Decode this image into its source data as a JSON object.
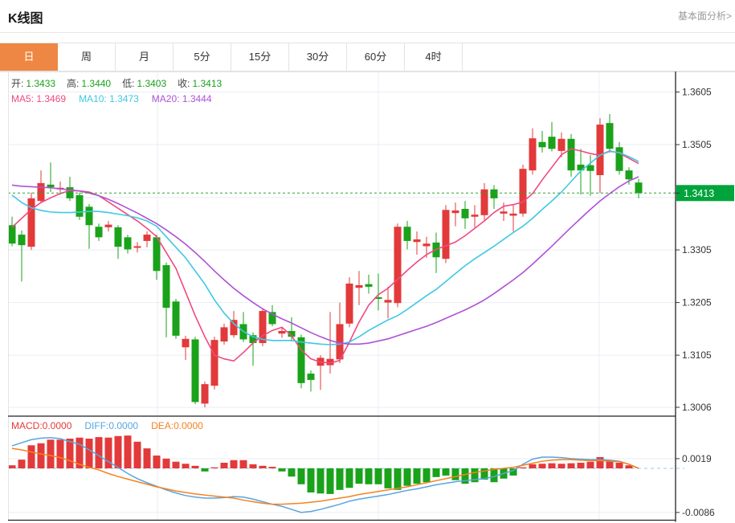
{
  "header": {
    "title": "K线图",
    "analysis_link": "基本面分析>"
  },
  "tabs": {
    "items": [
      "日",
      "周",
      "月",
      "5分",
      "15分",
      "30分",
      "60分",
      "4时"
    ],
    "active": "日"
  },
  "legend": {
    "ohlc": {
      "open_label": "开:",
      "open_value": "1.3433",
      "high_label": "高:",
      "high_value": "1.3440",
      "low_label": "低:",
      "low_value": "1.3403",
      "close_label": "收:",
      "close_value": "1.3413"
    },
    "ma": {
      "ma5_label": "MA5:",
      "ma5_value": "1.3469",
      "ma10_label": "MA10:",
      "ma10_value": "1.3473",
      "ma20_label": "MA20:",
      "ma20_value": "1.3444"
    },
    "macd": {
      "macd_label": "MACD:",
      "macd_value": "0.0000",
      "diff_label": "DIFF:",
      "diff_value": "0.0000",
      "dea_label": "DEA:",
      "dea_value": "0.0000"
    }
  },
  "colors": {
    "up": "#e23a3a",
    "down": "#1aa21a",
    "ma5": "#f0497f",
    "ma10": "#3fc8e4",
    "ma20": "#ae52d6",
    "diff": "#58a5e0",
    "dea": "#f5821f",
    "accent_tab": "#ee8743",
    "price_line": "#2ca52c",
    "badge_bg": "#00a43c",
    "grid": "#e9eef4",
    "axis_text": "#333333",
    "macd_zero": "#b5ddf2",
    "border_dark": "#222222",
    "border_light": "#e3e3e3"
  },
  "chart_data": {
    "type": "candlestick",
    "title": "K线图",
    "legend_position": "top-left",
    "grid": true,
    "price_axis": {
      "ticks": [
        {
          "value": 1.3605,
          "label": "1.3605"
        },
        {
          "value": 1.3505,
          "label": "1.3505"
        },
        {
          "value": 1.3405,
          "label": ""
        },
        {
          "value": 1.3305,
          "label": "1.3305"
        },
        {
          "value": 1.3205,
          "label": "1.3205"
        },
        {
          "value": 1.3105,
          "label": "1.3105"
        },
        {
          "value": 1.3006,
          "label": "1.3006"
        }
      ],
      "range": [
        1.2989,
        1.3642
      ],
      "current": {
        "value": 1.3413,
        "label": "1.3413"
      }
    },
    "macd_axis": {
      "ticks": [
        {
          "value": 0.0019,
          "label": "0.0019"
        },
        {
          "value": -0.0086,
          "label": "-0.0086"
        }
      ],
      "range": [
        -0.0102,
        0.0102
      ],
      "zero_line_dashed": true
    },
    "candles": [
      [
        1.3352,
        1.3368,
        1.3312,
        1.3317
      ],
      [
        1.3334,
        1.3342,
        1.3245,
        1.3314
      ],
      [
        1.3311,
        1.3414,
        1.3305,
        1.3403
      ],
      [
        1.3398,
        1.3456,
        1.3395,
        1.3432
      ],
      [
        1.3429,
        1.3471,
        1.3415,
        1.3424
      ],
      [
        1.342,
        1.3435,
        1.341,
        1.3423
      ],
      [
        1.3424,
        1.3444,
        1.3398,
        1.3403
      ],
      [
        1.3409,
        1.3414,
        1.3362,
        1.3368
      ],
      [
        1.3387,
        1.3392,
        1.3307,
        1.3352
      ],
      [
        1.3349,
        1.3355,
        1.3322,
        1.3329
      ],
      [
        1.3348,
        1.336,
        1.334,
        1.3353
      ],
      [
        1.3348,
        1.3352,
        1.3288,
        1.3311
      ],
      [
        1.3329,
        1.3334,
        1.3298,
        1.3306
      ],
      [
        1.3309,
        1.332,
        1.33,
        1.3312
      ],
      [
        1.3322,
        1.334,
        1.331,
        1.3334
      ],
      [
        1.3329,
        1.3334,
        1.3248,
        1.3265
      ],
      [
        1.3276,
        1.3281,
        1.3139,
        1.3195
      ],
      [
        1.3207,
        1.3212,
        1.3136,
        1.3142
      ],
      [
        1.312,
        1.3142,
        1.3096,
        1.3136
      ],
      [
        1.3135,
        1.314,
        1.3012,
        1.3016
      ],
      [
        1.3013,
        1.3055,
        1.3006,
        1.305
      ],
      [
        1.3047,
        1.314,
        1.304,
        1.3134
      ],
      [
        1.3131,
        1.3165,
        1.3125,
        1.3158
      ],
      [
        1.3143,
        1.3189,
        1.3138,
        1.3172
      ],
      [
        1.3164,
        1.3187,
        1.313,
        1.3135
      ],
      [
        1.3143,
        1.3148,
        1.3085,
        1.3128
      ],
      [
        1.3128,
        1.3194,
        1.3122,
        1.3189
      ],
      [
        1.3187,
        1.32,
        1.316,
        1.3164
      ],
      [
        1.3146,
        1.3158,
        1.3138,
        1.3151
      ],
      [
        1.3151,
        1.3177,
        1.3131,
        1.314
      ],
      [
        1.3139,
        1.3144,
        1.3042,
        1.3052
      ],
      [
        1.307,
        1.3076,
        1.3036,
        1.3058
      ],
      [
        1.3085,
        1.3105,
        1.3039,
        1.31
      ],
      [
        1.3086,
        1.3187,
        1.307,
        1.3098
      ],
      [
        1.3097,
        1.3205,
        1.309,
        1.3164
      ],
      [
        1.3165,
        1.3253,
        1.3158,
        1.3241
      ],
      [
        1.3233,
        1.3265,
        1.32,
        1.3238
      ],
      [
        1.324,
        1.3258,
        1.3222,
        1.3235
      ],
      [
        1.3215,
        1.326,
        1.319,
        1.3212
      ],
      [
        1.3205,
        1.3235,
        1.3175,
        1.321
      ],
      [
        1.3204,
        1.3355,
        1.3196,
        1.3349
      ],
      [
        1.3349,
        1.336,
        1.3306,
        1.3322
      ],
      [
        1.332,
        1.334,
        1.3296,
        1.3325
      ],
      [
        1.3312,
        1.333,
        1.329,
        1.3317
      ],
      [
        1.3319,
        1.3338,
        1.3261,
        1.3291
      ],
      [
        1.3288,
        1.339,
        1.328,
        1.3381
      ],
      [
        1.3375,
        1.3395,
        1.335,
        1.338
      ],
      [
        1.3383,
        1.3398,
        1.3345,
        1.3365
      ],
      [
        1.3368,
        1.339,
        1.3348,
        1.3372
      ],
      [
        1.3371,
        1.3432,
        1.3362,
        1.342
      ],
      [
        1.342,
        1.3428,
        1.3383,
        1.3403
      ],
      [
        1.3374,
        1.3395,
        1.336,
        1.3378
      ],
      [
        1.337,
        1.339,
        1.334,
        1.3374
      ],
      [
        1.3374,
        1.3467,
        1.3368,
        1.3459
      ],
      [
        1.3456,
        1.3536,
        1.3448,
        1.3517
      ],
      [
        1.351,
        1.3531,
        1.349,
        1.35
      ],
      [
        1.352,
        1.3548,
        1.3492,
        1.3497
      ],
      [
        1.3493,
        1.3528,
        1.3481,
        1.3516
      ],
      [
        1.3516,
        1.3525,
        1.3444,
        1.3456
      ],
      [
        1.3467,
        1.3497,
        1.341,
        1.3456
      ],
      [
        1.3466,
        1.3485,
        1.3408,
        1.3455
      ],
      [
        1.3447,
        1.3555,
        1.3413,
        1.3543
      ],
      [
        1.3546,
        1.3563,
        1.349,
        1.3497
      ],
      [
        1.35,
        1.351,
        1.3448,
        1.3455
      ],
      [
        1.3456,
        1.3462,
        1.3429,
        1.3439
      ],
      [
        1.3433,
        1.344,
        1.3403,
        1.3413
      ]
    ],
    "ma5": [
      1.3348,
      1.3365,
      1.3382,
      1.3395,
      1.3404,
      1.3412,
      1.3418,
      1.3417,
      1.3415,
      1.3408,
      1.3396,
      1.3384,
      1.3372,
      1.336,
      1.3346,
      1.333,
      1.33,
      1.327,
      1.3225,
      1.318,
      1.314,
      1.3105,
      1.3098,
      1.3094,
      1.311,
      1.3128,
      1.3142,
      1.3152,
      1.3158,
      1.3142,
      1.3115,
      1.3098,
      1.3092,
      1.309,
      1.3095,
      1.313,
      1.3168,
      1.32,
      1.322,
      1.3232,
      1.3249,
      1.3266,
      1.3282,
      1.3296,
      1.3306,
      1.3313,
      1.332,
      1.3332,
      1.3346,
      1.336,
      1.3376,
      1.3388,
      1.3391,
      1.3396,
      1.3412,
      1.3438,
      1.3462,
      1.3486,
      1.3497,
      1.3493,
      1.3488,
      1.3485,
      1.3493,
      1.3489,
      1.3479,
      1.3469
    ],
    "ma10": [
      1.3409,
      1.3395,
      1.3385,
      1.338,
      1.3377,
      1.3376,
      1.3376,
      1.3377,
      1.3378,
      1.3378,
      1.3376,
      1.3373,
      1.337,
      1.3366,
      1.336,
      1.335,
      1.333,
      1.331,
      1.329,
      1.3265,
      1.324,
      1.321,
      1.3185,
      1.3165,
      1.315,
      1.314,
      1.3135,
      1.3133,
      1.3133,
      1.3133,
      1.313,
      1.3128,
      1.3126,
      1.3125,
      1.3126,
      1.313,
      1.314,
      1.3152,
      1.3162,
      1.3172,
      1.318,
      1.3192,
      1.3205,
      1.3218,
      1.323,
      1.3245,
      1.326,
      1.3275,
      1.3288,
      1.33,
      1.3312,
      1.3325,
      1.3338,
      1.335,
      1.3365,
      1.3382,
      1.3398,
      1.3415,
      1.3435,
      1.3455,
      1.347,
      1.3485,
      1.3492,
      1.349,
      1.3482,
      1.3473
    ],
    "ma20": [
      1.3428,
      1.3426,
      1.3425,
      1.3424,
      1.3423,
      1.3421,
      1.3419,
      1.3417,
      1.3413,
      1.3408,
      1.3401,
      1.3393,
      1.3384,
      1.3375,
      1.3365,
      1.3355,
      1.3343,
      1.333,
      1.3316,
      1.33,
      1.3283,
      1.3265,
      1.3248,
      1.3232,
      1.3218,
      1.3205,
      1.3193,
      1.3183,
      1.3174,
      1.3166,
      1.3157,
      1.3148,
      1.314,
      1.3133,
      1.3128,
      1.3126,
      1.3126,
      1.3128,
      1.3132,
      1.3136,
      1.3142,
      1.3148,
      1.3154,
      1.316,
      1.3167,
      1.3175,
      1.3183,
      1.3191,
      1.32,
      1.321,
      1.3222,
      1.3235,
      1.3248,
      1.3262,
      1.3278,
      1.3295,
      1.3312,
      1.333,
      1.3348,
      1.3365,
      1.3382,
      1.3398,
      1.3412,
      1.3425,
      1.3436,
      1.3444
    ],
    "macd_hist": [
      0.0006,
      0.0017,
      0.0045,
      0.0049,
      0.0056,
      0.0056,
      0.0058,
      0.006,
      0.0058,
      0.0061,
      0.006,
      0.0063,
      0.0064,
      0.0052,
      0.0039,
      0.0025,
      0.0019,
      0.0013,
      0.0009,
      0.0005,
      -0.0006,
      0.0002,
      0.0011,
      0.0016,
      0.0016,
      0.0008,
      0.0005,
      0.0003,
      -0.0006,
      -0.0016,
      -0.0031,
      -0.0047,
      -0.0049,
      -0.005,
      -0.0042,
      -0.0038,
      -0.003,
      -0.0031,
      -0.0031,
      -0.0039,
      -0.0042,
      -0.0034,
      -0.003,
      -0.0027,
      -0.0017,
      -0.0014,
      -0.0023,
      -0.003,
      -0.0027,
      -0.0022,
      -0.0027,
      -0.002,
      -0.0014,
      0.0002,
      0.0008,
      0.0009,
      0.001,
      0.0009,
      0.001,
      0.0011,
      0.0013,
      0.0022,
      0.0016,
      0.0011,
      0.0006,
      0.0
    ],
    "diff_line": [
      0.0044,
      0.005,
      0.0056,
      0.0059,
      0.006,
      0.0058,
      0.0052,
      0.0047,
      0.0036,
      0.0025,
      0.0013,
      0.0002,
      -0.001,
      -0.002,
      -0.0028,
      -0.0035,
      -0.0042,
      -0.0048,
      -0.0053,
      -0.0056,
      -0.0058,
      -0.0058,
      -0.0057,
      -0.0055,
      -0.0056,
      -0.006,
      -0.0065,
      -0.007,
      -0.0074,
      -0.008,
      -0.0086,
      -0.0084,
      -0.008,
      -0.0075,
      -0.007,
      -0.0064,
      -0.006,
      -0.0057,
      -0.0054,
      -0.0051,
      -0.0047,
      -0.0043,
      -0.004,
      -0.0036,
      -0.0032,
      -0.0029,
      -0.0026,
      -0.0024,
      -0.0022,
      -0.002,
      -0.0016,
      -0.001,
      -0.0004,
      0.0008,
      0.0018,
      0.0022,
      0.0022,
      0.0021,
      0.0019,
      0.0018,
      0.0017,
      0.0017,
      0.0016,
      0.0014,
      0.0008,
      0.0
    ],
    "dea_line": [
      0.0039,
      0.0036,
      0.0032,
      0.0028,
      0.0025,
      0.0021,
      0.0015,
      0.0008,
      0.0002,
      -0.0003,
      -0.001,
      -0.0016,
      -0.0021,
      -0.0026,
      -0.0031,
      -0.0036,
      -0.004,
      -0.0044,
      -0.0047,
      -0.005,
      -0.0052,
      -0.0054,
      -0.0056,
      -0.0058,
      -0.0062,
      -0.0065,
      -0.0068,
      -0.007,
      -0.007,
      -0.0069,
      -0.0068,
      -0.0066,
      -0.0064,
      -0.0061,
      -0.0058,
      -0.0055,
      -0.0051,
      -0.0048,
      -0.0045,
      -0.0042,
      -0.0039,
      -0.0036,
      -0.0032,
      -0.0028,
      -0.0024,
      -0.002,
      -0.0016,
      -0.0012,
      -0.0008,
      -0.0005,
      -0.0002,
      0.0,
      0.0002,
      0.0006,
      0.001,
      0.0014,
      0.0016,
      0.0017,
      0.0017,
      0.0016,
      0.0015,
      0.0015,
      0.0014,
      0.0013,
      0.0008,
      0.0
    ]
  }
}
